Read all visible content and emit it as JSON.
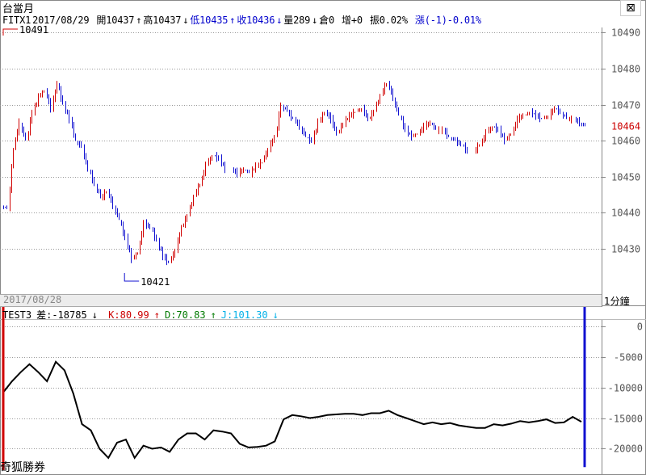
{
  "title": "台當月",
  "info": {
    "symbol": "FITX1",
    "date": "2017/08/29",
    "open": "開10437",
    "open_arrow": "↑",
    "high": "高10437",
    "high_arrow": "↓",
    "low": "低10435",
    "low_arrow": "↑",
    "close": "收10436",
    "close_arrow": "↓",
    "volume": "量289",
    "volume_arrow": "↓",
    "oi": "倉0",
    "increase": "增+0",
    "amplitude": "振0.02%",
    "change": "漲(-1)-0.01%"
  },
  "close_button": "⊠",
  "date_strip": "2017/08/28",
  "period": "1分鐘",
  "sub_info": {
    "name": "TEST3",
    "diff": "差:-18785",
    "diff_arrow": "↓",
    "k": "K:80.99",
    "k_arrow": "↑",
    "d": "D:70.83",
    "d_arrow": "↑",
    "j": "J:101.30",
    "j_arrow": "↓"
  },
  "watermark": "奇狐勝券",
  "colors": {
    "up": "#d00000",
    "down": "#1010d0",
    "grid": "#999999",
    "highlight_price": "#cc0000"
  },
  "chart_data": [
    {
      "type": "candlestick",
      "ylim": [
        10421,
        10491
      ],
      "yticks": [
        10430,
        10440,
        10450,
        10460,
        10470,
        10480,
        10490
      ],
      "current_price": 10464,
      "annotations": {
        "high": "10491",
        "low": "10421"
      },
      "closes": [
        10441,
        10458,
        10465,
        10460,
        10468,
        10472,
        10474,
        10469,
        10476,
        10470,
        10466,
        10460,
        10458,
        10452,
        10448,
        10444,
        10446,
        10442,
        10438,
        10433,
        10427,
        10429,
        10437,
        10436,
        10432,
        10428,
        10426,
        10430,
        10436,
        10439,
        10445,
        10448,
        10453,
        10456,
        10455,
        10452,
        10452,
        10451,
        10452,
        10451,
        10453,
        10454,
        10458,
        10461,
        10470,
        10468,
        10466,
        10464,
        10461,
        10460,
        10465,
        10468,
        10466,
        10462,
        10465,
        10467,
        10468,
        10469,
        10466,
        10468,
        10473,
        10476,
        10472,
        10467,
        10463,
        10461,
        10462,
        10464,
        10465,
        10463,
        10463,
        10461,
        10460,
        10459,
        10457,
        10457,
        10459,
        10462,
        10464,
        10463,
        10460,
        10462,
        10466,
        10467,
        10468,
        10467,
        10466,
        10467,
        10469,
        10468,
        10466,
        10466,
        10465,
        10464
      ]
    },
    {
      "type": "line",
      "ylim": [
        -23500,
        500
      ],
      "yticks": [
        0,
        -5000,
        -10000,
        -15000,
        -20000
      ],
      "ytick_labels": [
        "0",
        "-5000",
        "-10000",
        "-15000",
        "-20000"
      ],
      "series": [
        {
          "values": [
            -10800,
            -9000,
            -7500,
            -6200,
            -7500,
            -9000,
            -5800,
            -7200,
            -11000,
            -16000,
            -17000,
            -20000,
            -21500,
            -19000,
            -18500,
            -21500,
            -19500,
            -20000,
            -19800,
            -20500,
            -18500,
            -17500,
            -17500,
            -18500,
            -17000,
            -17200,
            -17500,
            -19200,
            -19800,
            -19700,
            -19500,
            -18800,
            -15200,
            -14500,
            -14700,
            -15000,
            -14800,
            -14500,
            -14400,
            -14300,
            -14300,
            -14500,
            -14200,
            -14200,
            -13800,
            -14500,
            -15000,
            -15500,
            -16000,
            -15700,
            -16000,
            -15800,
            -16200,
            -16400,
            -16600,
            -16600,
            -16000,
            -16200,
            -15900,
            -15500,
            -15700,
            -15500,
            -15200,
            -15800,
            -15700,
            -14800,
            -15600
          ]
        },
        {
          "name": "bar",
          "values": [
            -23000,
            0
          ]
        }
      ]
    }
  ]
}
